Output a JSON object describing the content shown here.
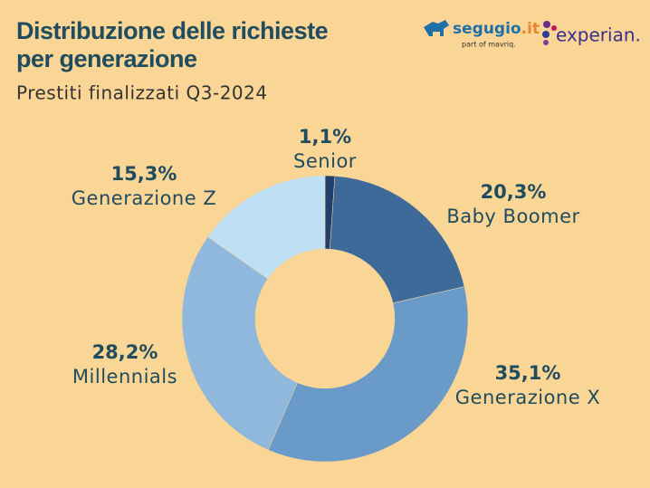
{
  "chart_data": {
    "type": "donut",
    "title": "Distribuzione delle richieste",
    "title_line2": "per generazione",
    "subtitle": "Prestiti finalizzati Q3-2024",
    "categories": [
      "Senior",
      "Baby Boomer",
      "Generazione X",
      "Millennials",
      "Generazione Z"
    ],
    "values": [
      1.1,
      20.3,
      35.1,
      28.2,
      15.3
    ],
    "value_labels": [
      "1,1%",
      "20,3%",
      "35,1%",
      "28,2%",
      "15,3%"
    ],
    "colors": [
      "#1f3f6c",
      "#3e6a9a",
      "#6a9bc8",
      "#8fb8dc",
      "#bfe0f4"
    ]
  },
  "logos": {
    "segugio": "segugio",
    "segugio_tld": ".it",
    "segugio_sub": "part of mavriq.",
    "experian": "experian."
  }
}
